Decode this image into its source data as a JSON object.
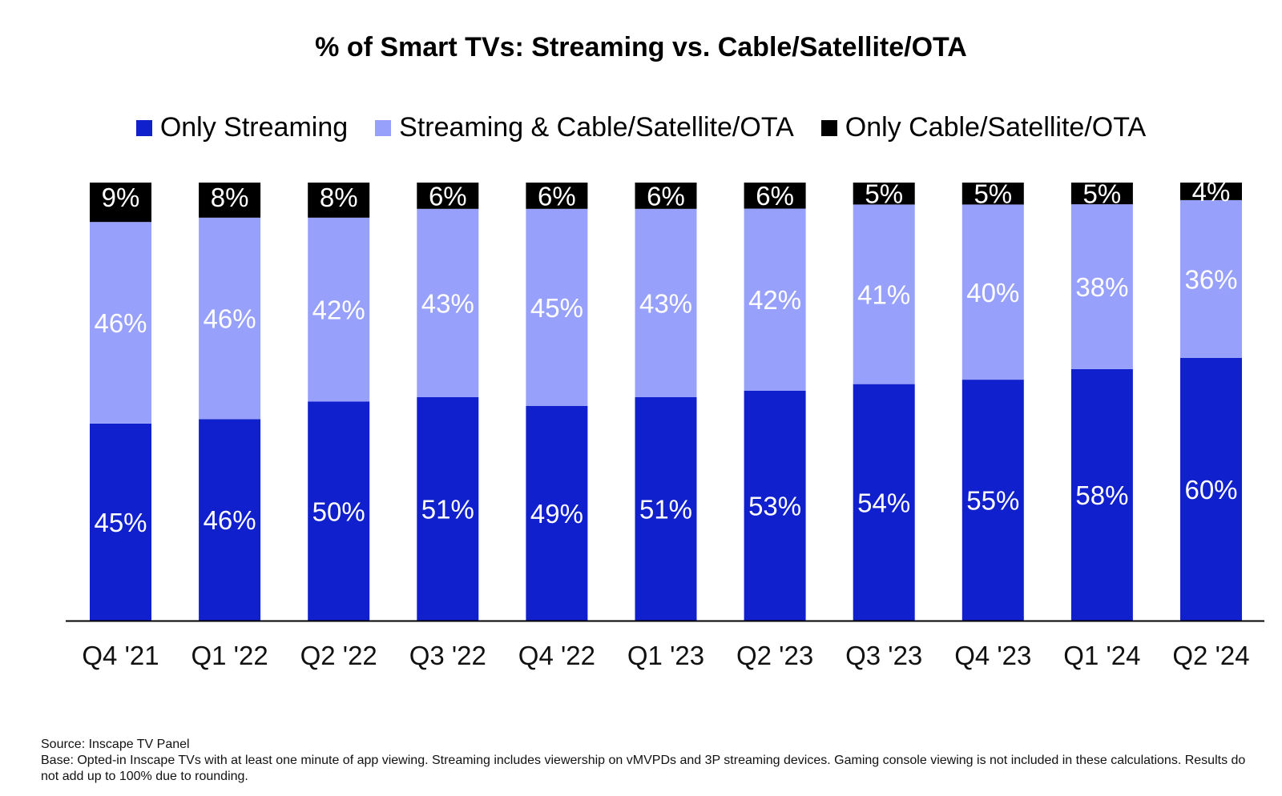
{
  "chart_data": {
    "type": "bar",
    "stacked": true,
    "title": "% of Smart TVs: Streaming vs. Cable/Satellite/OTA",
    "categories": [
      "Q4 '21",
      "Q1 '22",
      "Q2 '22",
      "Q3 '22",
      "Q4 '22",
      "Q1 '23",
      "Q2 '23",
      "Q3 '23",
      "Q4 '23",
      "Q1 '24",
      "Q2 '24"
    ],
    "series": [
      {
        "name": "Only Streaming",
        "color": "#1020cc",
        "label_color": "#ffffff",
        "values": [
          45,
          46,
          50,
          51,
          49,
          51,
          53,
          54,
          55,
          58,
          60
        ]
      },
      {
        "name": "Streaming & Cable/Satellite/OTA",
        "color": "#97a1fb",
        "label_color": "#ffffff",
        "values": [
          46,
          46,
          42,
          43,
          45,
          43,
          42,
          41,
          40,
          38,
          36
        ]
      },
      {
        "name": "Only Cable/Satellite/OTA",
        "color": "#000000",
        "label_color": "#ffffff",
        "values": [
          9,
          8,
          8,
          6,
          6,
          6,
          6,
          5,
          5,
          5,
          4
        ]
      }
    ],
    "value_suffix": "%",
    "xlabel": "",
    "ylabel": "",
    "grid": false,
    "legend_position": "top-center"
  },
  "footnote": {
    "source": "Source: Inscape TV Panel",
    "base": "Base: Opted-in Inscape TVs with at least one minute of app viewing. Streaming includes viewership on vMVPDs and 3P streaming devices. Gaming console viewing is not included in these calculations. Results do not add up to 100% due to rounding."
  }
}
